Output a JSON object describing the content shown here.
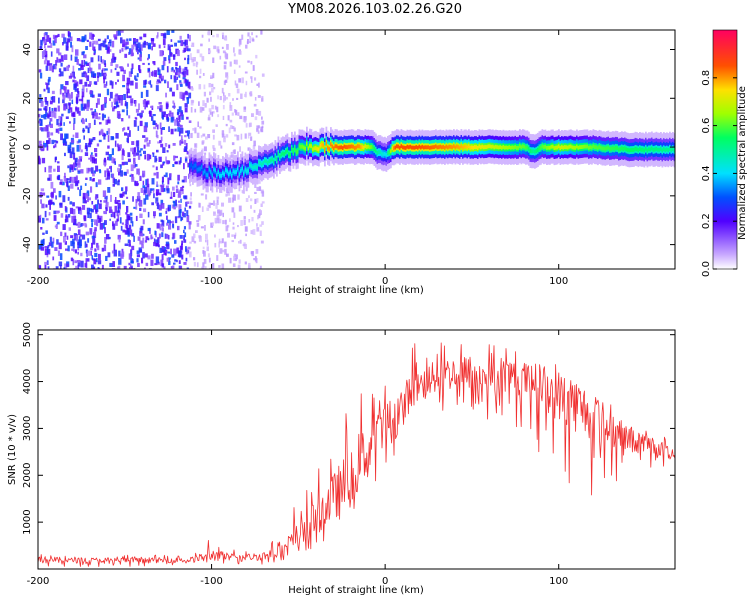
{
  "chart_data": [
    {
      "type": "heatmap",
      "title": "YM08.2026.103.02.26.G20",
      "xlabel": "Height of straight line (km)",
      "ylabel": "Frequency (Hz)",
      "xlim": [
        -200,
        167
      ],
      "ylim": [
        -50,
        48
      ],
      "xticks": [
        -200,
        -100,
        0,
        100
      ],
      "yticks": [
        -40,
        -20,
        0,
        20,
        40
      ],
      "xtick_labels": [
        "-200",
        "-100",
        "0",
        "100"
      ],
      "ytick_labels": [
        "-40",
        "-20",
        "0",
        "20",
        "40"
      ],
      "colorbar": {
        "label": "Normalized spectral amplitude",
        "range": [
          0,
          1
        ],
        "ticks": [
          0.0,
          0.2,
          0.4,
          0.6,
          0.8
        ],
        "tick_labels": [
          "0.0",
          "0.2",
          "0.4",
          "0.6",
          "0.8"
        ]
      },
      "ridge": {
        "x": [
          -113,
          -105,
          -95,
          -85,
          -75,
          -65,
          -55,
          -45,
          -35,
          -25,
          -15,
          -8,
          -5,
          0,
          5,
          20,
          40,
          60,
          80,
          85,
          90,
          100,
          120,
          140,
          167
        ],
        "y": [
          -8,
          -10,
          -11,
          -10,
          -8,
          -5,
          -2,
          0,
          0,
          0,
          0,
          0,
          -2,
          -3,
          0,
          0,
          0,
          0,
          0,
          -2,
          0,
          0,
          0,
          -1,
          -1
        ],
        "amplitude": [
          0.3,
          0.35,
          0.4,
          0.4,
          0.45,
          0.5,
          0.55,
          0.65,
          0.8,
          0.85,
          0.8,
          0.6,
          0.5,
          0.4,
          0.85,
          0.85,
          0.8,
          0.7,
          0.6,
          0.5,
          0.6,
          0.7,
          0.6,
          0.55,
          0.5
        ]
      },
      "noise_region": {
        "x_range": [
          -200,
          -113
        ],
        "amplitude_range": [
          0.1,
          0.3
        ]
      }
    },
    {
      "type": "line",
      "xlabel": "Height of straight line (km)",
      "ylabel": "SNR (10 * v/v)",
      "xlim": [
        -200,
        167
      ],
      "ylim": [
        0,
        5100
      ],
      "xticks": [
        -200,
        -100,
        0,
        100
      ],
      "yticks": [
        1000,
        2000,
        3000,
        4000,
        5000
      ],
      "xtick_labels": [
        "-200",
        "-100",
        "0",
        "100"
      ],
      "ytick_labels": [
        "1000",
        "2000",
        "3000",
        "4000",
        "5000"
      ],
      "color": "#f03030",
      "series": [
        {
          "name": "SNR",
          "x": [
            -200,
            -180,
            -160,
            -140,
            -120,
            -110,
            -100,
            -90,
            -80,
            -70,
            -60,
            -50,
            -45,
            -40,
            -35,
            -30,
            -25,
            -20,
            -15,
            -10,
            -5,
            0,
            5,
            10,
            15,
            20,
            25,
            30,
            40,
            50,
            60,
            70,
            80,
            90,
            100,
            110,
            120,
            130,
            140,
            150,
            160,
            167
          ],
          "values": [
            200,
            180,
            190,
            180,
            190,
            200,
            300,
            260,
            250,
            280,
            380,
            700,
            900,
            1100,
            1300,
            1500,
            1700,
            1900,
            2300,
            2500,
            2700,
            3000,
            3200,
            3500,
            3800,
            3900,
            4000,
            4100,
            4200,
            4200,
            4150,
            4150,
            4050,
            3900,
            3700,
            3500,
            3250,
            3000,
            2800,
            2650,
            2550,
            2450
          ],
          "envelope_upper": [
            400,
            300,
            300,
            300,
            300,
            350,
            700,
            450,
            400,
            550,
            800,
            1600,
            1800,
            2000,
            2400,
            2800,
            3300,
            3400,
            3800,
            4000,
            4300,
            4500,
            4600,
            4700,
            4800,
            4900,
            4950,
            4950,
            4900,
            4850,
            4800,
            4750,
            4650,
            4550,
            4350,
            4150,
            3850,
            3600,
            3250,
            3000,
            2900,
            2800
          ],
          "envelope_lower": [
            50,
            50,
            50,
            50,
            60,
            60,
            100,
            100,
            100,
            100,
            150,
            250,
            300,
            400,
            400,
            500,
            500,
            800,
            1000,
            1400,
            1800,
            2000,
            2400,
            2800,
            3100,
            3200,
            3300,
            3300,
            3300,
            3200,
            3150,
            3050,
            3000,
            2400,
            1900,
            1500,
            1500,
            1700,
            1900,
            2100,
            2150,
            2150
          ]
        }
      ]
    }
  ]
}
